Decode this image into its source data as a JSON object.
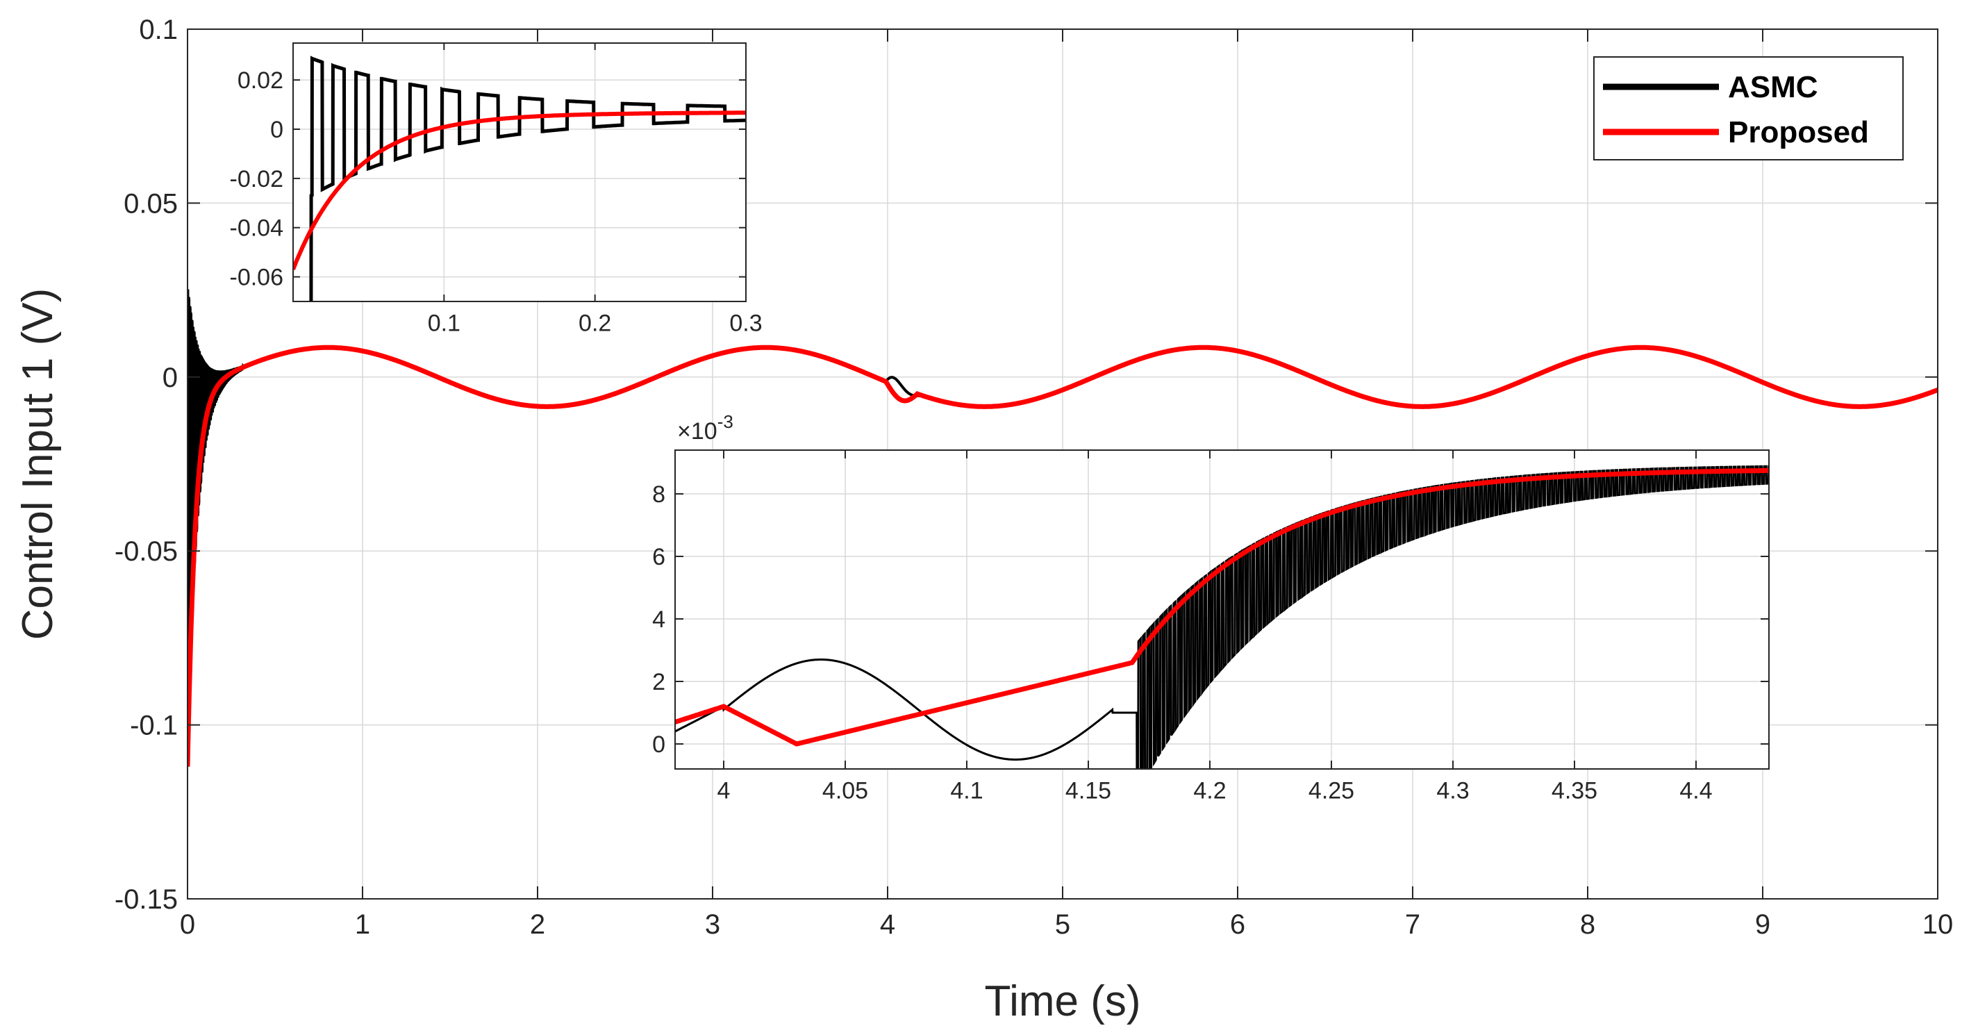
{
  "chart_data": [
    {
      "id": "main",
      "type": "line",
      "xlabel": "Time (s)",
      "ylabel": "Control Input 1 (V)",
      "xlim": [
        0,
        10
      ],
      "ylim": [
        -0.15,
        0.1
      ],
      "xticks": [
        0,
        1,
        2,
        3,
        4,
        5,
        6,
        7,
        8,
        9,
        10
      ],
      "xtick_labels": [
        "0",
        "1",
        "2",
        "3",
        "4",
        "5",
        "6",
        "7",
        "8",
        "9",
        "10"
      ],
      "yticks": [
        -0.15,
        -0.1,
        -0.05,
        0,
        0.05,
        0.1
      ],
      "ytick_labels": [
        "-0.15",
        "-0.1",
        "-0.05",
        "0",
        "0.05",
        "0.1"
      ],
      "grid": true,
      "legend_position": "top-right",
      "series": [
        {
          "name": "ASMC",
          "color": "#000000",
          "description": "Oscillatory steady-state ~0.008*sin(2*pi*0.4*t); high-frequency chattering from -0.11 to 0.033 in first 0.3 s and small disturbance near t=4.0–4.17 s",
          "steady_amplitude": 0.0085,
          "steady_freq_hz": 0.4,
          "initial_min": -0.11,
          "initial_max": 0.033
        },
        {
          "name": "Proposed",
          "color": "#ff0000",
          "description": "Smooth response starting at -0.11 converging to ~0.008*sin(2*pi*0.4*t) by t≈0.3 s",
          "steady_amplitude": 0.0085,
          "steady_freq_hz": 0.4,
          "initial_value": -0.112
        }
      ]
    },
    {
      "id": "inset-top",
      "type": "line",
      "xlabel": "",
      "ylabel": "",
      "xlim": [
        0,
        0.3
      ],
      "ylim": [
        -0.07,
        0.035
      ],
      "xticks": [
        0.1,
        0.2,
        0.3
      ],
      "xtick_labels": [
        "0.1",
        "0.2",
        "0.3"
      ],
      "yticks": [
        -0.06,
        -0.04,
        -0.02,
        0,
        0.02
      ],
      "ytick_labels": [
        "-0.06",
        "-0.04",
        "-0.02",
        "0",
        "0.02"
      ],
      "grid": true,
      "series": [
        {
          "name": "ASMC",
          "color": "#000000",
          "description": "square-wave chattering decaying from ±0.03 toward ~0.007"
        },
        {
          "name": "Proposed",
          "color": "#ff0000",
          "description": "monotonic rise from -0.055 toward 0.007"
        }
      ]
    },
    {
      "id": "inset-bottom",
      "type": "line",
      "xlabel": "",
      "ylabel": "",
      "exponent_label": "×10",
      "exponent_power": "-3",
      "xlim": [
        3.98,
        4.43
      ],
      "ylim": [
        -0.0008,
        0.0094
      ],
      "xticks": [
        4,
        4.05,
        4.1,
        4.15,
        4.2,
        4.25,
        4.3,
        4.35,
        4.4
      ],
      "xtick_labels": [
        "4",
        "4.05",
        "4.1",
        "4.15",
        "4.2",
        "4.25",
        "4.3",
        "4.35",
        "4.4"
      ],
      "yticks": [
        0,
        0.002,
        0.004,
        0.006,
        0.008
      ],
      "ytick_labels": [
        "0",
        "2",
        "4",
        "6",
        "8"
      ],
      "grid": true,
      "series": [
        {
          "name": "ASMC",
          "color": "#000000",
          "description": "hump to 2.7e-3 at 4.03, dip to -0.5e-3 at 4.115, flat ~1e-3 to 4.17, then chattering band rising toward 8.8e-3"
        },
        {
          "name": "Proposed",
          "color": "#ff0000",
          "description": "dip to 0 at 4.03, linear rise to 2.6e-3 at 4.168, then fast rise approaching 8.8e-3"
        }
      ]
    }
  ],
  "legend": {
    "items": [
      {
        "label": "ASMC",
        "color": "#000000"
      },
      {
        "label": "Proposed",
        "color": "#ff0000"
      }
    ]
  }
}
